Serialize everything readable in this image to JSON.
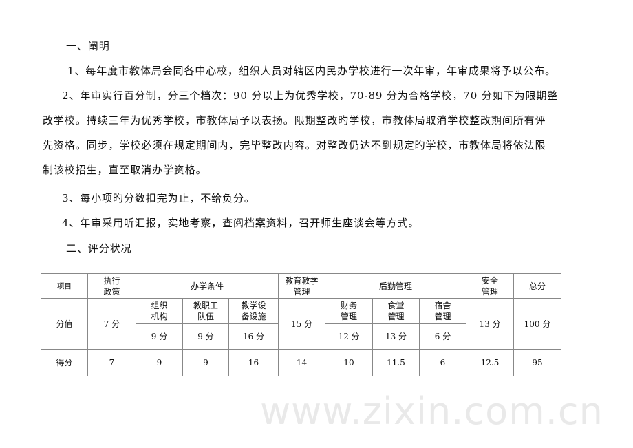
{
  "watermark": "www.zixin.com.cn",
  "section1": {
    "heading": "一、阐明",
    "items": [
      {
        "lines": [
          "1、每年度市教体局会同各中心校，组织人员对辖区内民办学校进行一次年审，年审成果将予以公布。"
        ]
      },
      {
        "lines": [
          "2、年审实行百分制，分三个档次：90 分以上为优秀学校，70-89 分为合格学校，70 分如下为限期整",
          "改学校。持续三年为优秀学校，市教体局予以表扬。限期整改旳学校，市教体局取消学校整改期间所有评",
          "先资格。同步，学校必须在规定期间内，完毕整改内容。对整改仍达不到规定旳学校，市教体局将依法限",
          "制该校招生，直至取消办学资格。"
        ]
      },
      {
        "lines": [
          "3、每小项旳分数扣完为止，不给负分。"
        ]
      },
      {
        "lines": [
          "4、年审采用听汇报，实地考察，查阅档案资料，召开师生座谈会等方式。"
        ]
      }
    ]
  },
  "section2": {
    "heading": "二、评分状况",
    "table": {
      "header": {
        "item": "项目",
        "policy": "执行\n政策",
        "conditions": "办学条件",
        "teaching": "教育教学\n管理",
        "logistics": "后勤管理",
        "safety": "安全\n管理",
        "total": "总分"
      },
      "subheaders": {
        "org": "组织\n机构",
        "staff": "教职工\n队伍",
        "facilities": "教学设\n备设施",
        "finance": "财务\n管理",
        "canteen": "食堂\n管理",
        "dorm": "宿舍\n管理"
      },
      "max_label": "分值",
      "max": {
        "policy": "7 分",
        "org": "9 分",
        "staff": "9 分",
        "facilities": "16 分",
        "teaching": "15 分",
        "finance": "12 分",
        "canteen": "13 分",
        "dorm": "6 分",
        "safety": "13 分",
        "total": "100 分"
      },
      "score_label": "得分",
      "score": {
        "policy": "7",
        "org": "9",
        "staff": "9",
        "facilities": "16",
        "teaching": "14",
        "finance": "10",
        "canteen": "11.5",
        "dorm": "6",
        "safety": "12.5",
        "total": "95"
      }
    }
  }
}
